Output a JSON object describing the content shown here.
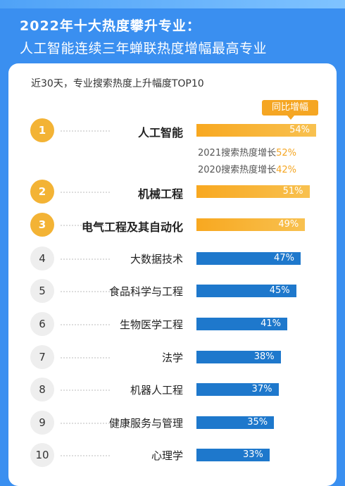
{
  "header": {
    "title_line1": "2022年十大热度攀升专业：",
    "title_line2": "人工智能连续三年蝉联热度增幅最高专业"
  },
  "subtitle": "近30天，专业搜索热度上升幅度TOP10",
  "legend_label": "同比增幅",
  "colors": {
    "top3_bar": "#f5a623",
    "other_bar": "#1e78cc",
    "top3_badge": "#f3b335"
  },
  "notes": [
    {
      "text": "2021搜索热度增长",
      "value": "52%"
    },
    {
      "text": "2020搜索热度增长",
      "value": "42%"
    }
  ],
  "chart_data": {
    "type": "bar",
    "orientation": "horizontal",
    "title": "近30天，专业搜索热度上升幅度TOP10",
    "legend": [
      "同比增幅"
    ],
    "categories": [
      "人工智能",
      "机械工程",
      "电气工程及其自动化",
      "大数据技术",
      "食品科学与工程",
      "生物医学工程",
      "法学",
      "机器人工程",
      "健康服务与管理",
      "心理学"
    ],
    "ranks": [
      "1",
      "2",
      "3",
      "4",
      "5",
      "6",
      "7",
      "8",
      "9",
      "10"
    ],
    "values": [
      54,
      51,
      49,
      47,
      45,
      41,
      38,
      37,
      35,
      33
    ],
    "labels": [
      "54%",
      "51%",
      "49%",
      "47%",
      "45%",
      "41%",
      "38%",
      "37%",
      "35%",
      "33%"
    ],
    "unit": "%"
  }
}
